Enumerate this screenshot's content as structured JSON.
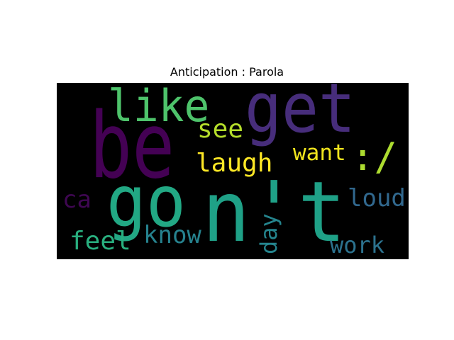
{
  "title": "Anticipation : Parola",
  "words": [
    {
      "text": "be",
      "color": "#440154"
    },
    {
      "text": "get",
      "color": "#472d7b"
    },
    {
      "text": "like",
      "color": "#4ec36b"
    },
    {
      "text": "go",
      "color": "#22a884"
    },
    {
      "text": "n't",
      "color": "#1fa187"
    },
    {
      "text": "see",
      "color": "#b5de2b"
    },
    {
      "text": "laugh",
      "color": "#fde725"
    },
    {
      "text": "want",
      "color": "#f1e51d"
    },
    {
      "text": ":/",
      "color": "#addc30"
    },
    {
      "text": "ca",
      "color": "#3e0751"
    },
    {
      "text": "loud",
      "color": "#31688e"
    },
    {
      "text": "feel",
      "color": "#29af7f"
    },
    {
      "text": "know",
      "color": "#26828e"
    },
    {
      "text": "day",
      "color": "#25858e"
    },
    {
      "text": "work",
      "color": "#2c728e"
    }
  ]
}
